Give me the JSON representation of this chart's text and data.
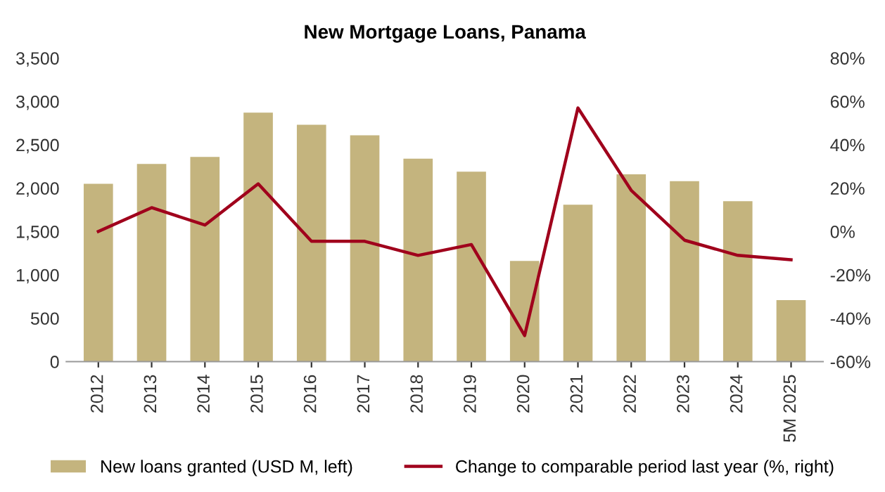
{
  "chart_data": {
    "type": "bar",
    "title": "New Mortgage Loans, Panama",
    "categories": [
      "2012",
      "2013",
      "2014",
      "2015",
      "2016",
      "2017",
      "2018",
      "2019",
      "2020",
      "2021",
      "2022",
      "2023",
      "2024",
      "5M 2025"
    ],
    "series": [
      {
        "name": "New loans granted (USD M, left)",
        "color": "#c4b47e",
        "values": [
          2050,
          2280,
          2360,
          2870,
          2730,
          2610,
          2340,
          2190,
          1160,
          1810,
          2160,
          2080,
          1850,
          710
        ]
      },
      {
        "name": "Change to comparable period last year (%, right)",
        "type": "line",
        "axis": "y2",
        "color": "#a0001c",
        "values": [
          0,
          11,
          3,
          22,
          -4.5,
          -4.5,
          -11,
          -6,
          -48,
          57,
          19,
          -4,
          -11,
          -13
        ]
      }
    ],
    "ylim": [
      0,
      3500
    ],
    "yticks": [
      {
        "value": 0,
        "label": "0"
      },
      {
        "value": 500,
        "label": "500"
      },
      {
        "value": 1000,
        "label": "1,000"
      },
      {
        "value": 1500,
        "label": "1,500"
      },
      {
        "value": 2000,
        "label": "2,000"
      },
      {
        "value": 2500,
        "label": "2,500"
      },
      {
        "value": 3000,
        "label": "3,000"
      },
      {
        "value": 3500,
        "label": "3,500"
      }
    ],
    "y2lim": [
      -60,
      80
    ],
    "y2ticks": [
      {
        "value": -60,
        "label": "-60%"
      },
      {
        "value": -40,
        "label": "-40%"
      },
      {
        "value": -20,
        "label": "-20%"
      },
      {
        "value": 0,
        "label": "0%"
      },
      {
        "value": 20,
        "label": "20%"
      },
      {
        "value": 40,
        "label": "40%"
      },
      {
        "value": 60,
        "label": "60%"
      },
      {
        "value": 80,
        "label": "80%"
      }
    ],
    "legend": "bottom",
    "grid": false,
    "marker": "none",
    "line_style": "solid"
  }
}
